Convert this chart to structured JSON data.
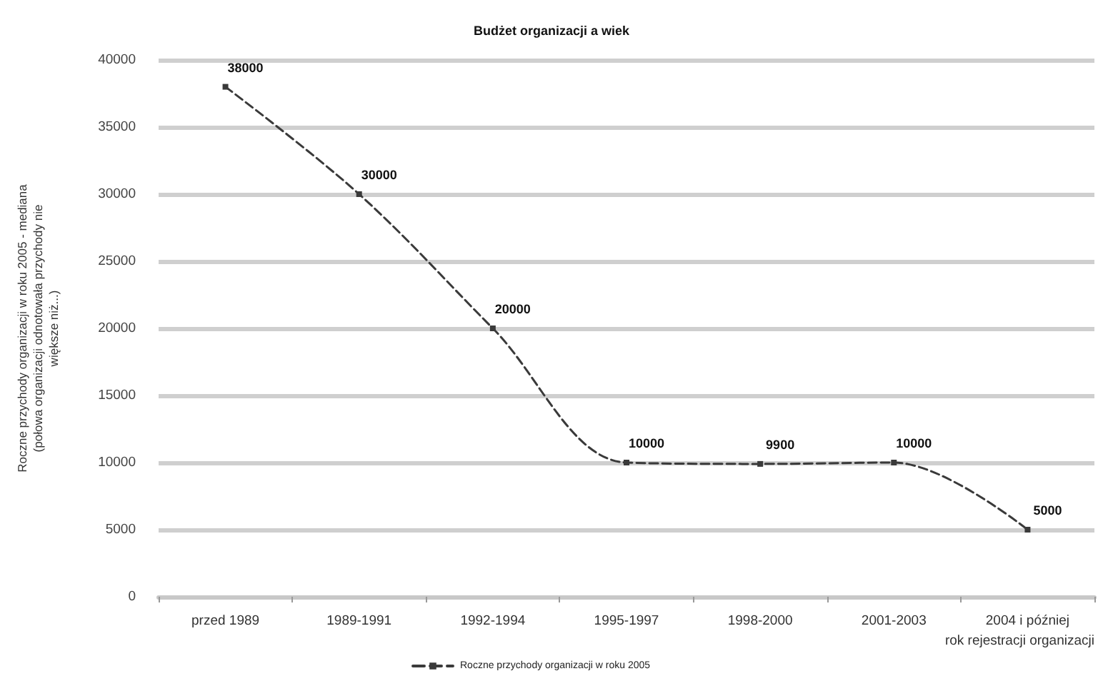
{
  "chart_data": {
    "type": "line",
    "title": "Budżet organizacji a wiek",
    "xlabel": "rok rejestracji organizacji",
    "ylabel": "Roczne przychody organizacji w roku 2005 - mediana (połowa organizacji odnotowała przychody nie większe niż...)",
    "categories": [
      "przed 1989",
      "1989-1991",
      "1992-1994",
      "1995-1997",
      "1998-2000",
      "2001-2003",
      "2004 i później"
    ],
    "series": [
      {
        "name": "Roczne przychody organizacji w roku 2005",
        "color": "#3a3a3a",
        "values": [
          38000,
          30000,
          20000,
          10000,
          9900,
          10000,
          5000
        ]
      }
    ],
    "ylim": [
      0,
      40000
    ],
    "yticks": [
      0,
      5000,
      10000,
      15000,
      20000,
      25000,
      30000,
      35000,
      40000
    ],
    "grid": "y",
    "legend": "bottom",
    "marker": "square",
    "line_style": "dashed",
    "data_labels": true
  }
}
